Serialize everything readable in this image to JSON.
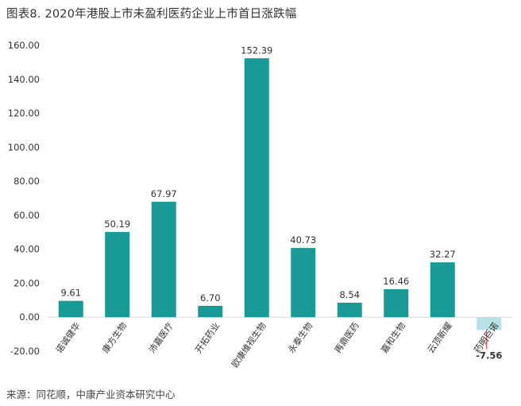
{
  "title": "图表8. 2020年港股上市未盈利医药企业上市首日涨跌幅",
  "source": "来源：同花顺，中康产业资本研究中心",
  "colors": {
    "bar": "#1a9a96",
    "negative_bar": "#b9e2e4",
    "negative_label": "#e8262b"
  },
  "chart_data": {
    "type": "bar",
    "categories": [
      "诺诚健华",
      "康方生物",
      "沛嘉医疗",
      "开拓药业",
      "欧康维视生物",
      "永泰生物",
      "再鼎医药",
      "嘉和生物",
      "云顶新耀",
      "药明巨诺"
    ],
    "values": [
      9.61,
      50.19,
      67.97,
      6.7,
      152.39,
      40.73,
      8.54,
      16.46,
      32.27,
      -7.56
    ],
    "value_labels": [
      "9.61",
      "50.19",
      "67.97",
      "6.70",
      "152.39",
      "40.73",
      "8.54",
      "16.46",
      "32.27",
      "-7.56"
    ],
    "ylim": [
      -20,
      160
    ],
    "yticks": [
      "-20.00",
      "0.00",
      "20.00",
      "40.00",
      "60.00",
      "80.00",
      "100.00",
      "120.00",
      "140.00",
      "160.00"
    ],
    "grid": false,
    "title": "",
    "xlabel": "",
    "ylabel": ""
  }
}
